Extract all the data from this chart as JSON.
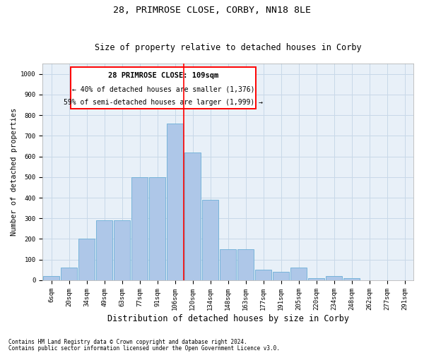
{
  "title": "28, PRIMROSE CLOSE, CORBY, NN18 8LE",
  "subtitle": "Size of property relative to detached houses in Corby",
  "xlabel": "Distribution of detached houses by size in Corby",
  "ylabel": "Number of detached properties",
  "footnote1": "Contains HM Land Registry data © Crown copyright and database right 2024.",
  "footnote2": "Contains public sector information licensed under the Open Government Licence v3.0.",
  "annotation_title": "28 PRIMROSE CLOSE: 109sqm",
  "annotation_line1": "← 40% of detached houses are smaller (1,376)",
  "annotation_line2": "59% of semi-detached houses are larger (1,999) →",
  "bar_labels": [
    "6sqm",
    "20sqm",
    "34sqm",
    "49sqm",
    "63sqm",
    "77sqm",
    "91sqm",
    "106sqm",
    "120sqm",
    "134sqm",
    "148sqm",
    "163sqm",
    "177sqm",
    "191sqm",
    "205sqm",
    "220sqm",
    "234sqm",
    "248sqm",
    "262sqm",
    "277sqm",
    "291sqm"
  ],
  "bar_values": [
    20,
    60,
    200,
    290,
    290,
    500,
    500,
    760,
    620,
    390,
    150,
    150,
    50,
    40,
    60,
    10,
    20,
    10,
    0,
    0,
    0
  ],
  "bar_color": "#aec7e8",
  "bar_edge_color": "#6baed6",
  "vline_x": 7.5,
  "vline_color": "red",
  "ylim": [
    0,
    1050
  ],
  "yticks": [
    0,
    100,
    200,
    300,
    400,
    500,
    600,
    700,
    800,
    900,
    1000
  ],
  "grid_color": "#c8d8e8",
  "bg_color": "#e8f0f8",
  "annotation_box_color": "red",
  "title_fontsize": 9.5,
  "subtitle_fontsize": 8.5,
  "ylabel_fontsize": 7.5,
  "xlabel_fontsize": 8.5,
  "tick_fontsize": 6.5,
  "ann_title_fontsize": 7.5,
  "ann_text_fontsize": 7.0,
  "footer_fontsize": 5.5
}
